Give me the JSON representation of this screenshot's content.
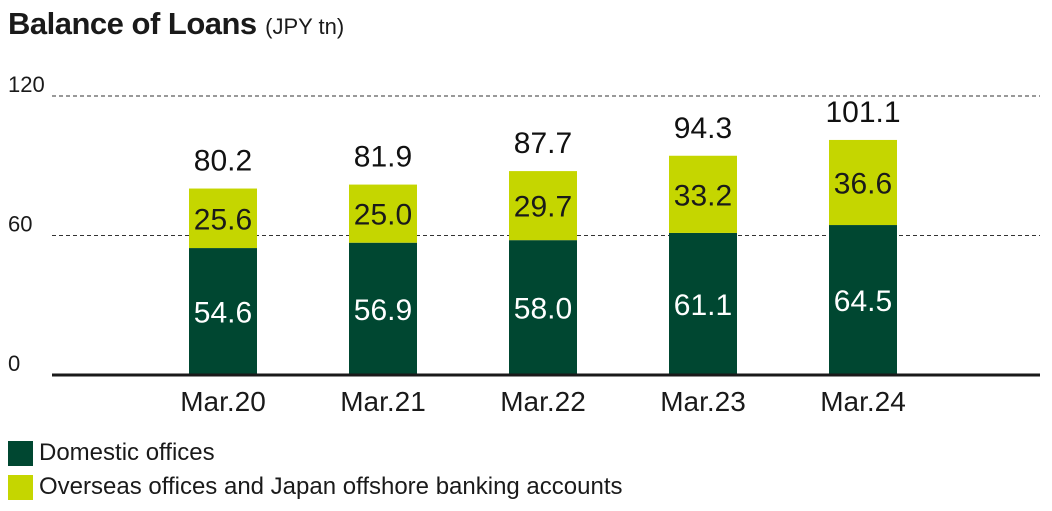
{
  "header": {
    "title": "Balance of Loans",
    "unit": "(JPY tn)"
  },
  "colors": {
    "domestic": "#004731",
    "overseas": "#c5d600",
    "axis": "#1a1a1a"
  },
  "chart_data": {
    "type": "bar",
    "stacked": true,
    "title": "Balance of Loans",
    "unit": "(JPY tn)",
    "categories": [
      "Mar.20",
      "Mar.21",
      "Mar.22",
      "Mar.23",
      "Mar.24"
    ],
    "series": [
      {
        "name": "Domestic offices",
        "values": [
          54.6,
          56.9,
          58.0,
          61.1,
          64.5
        ],
        "labels": [
          "54.6",
          "56.9",
          "58.0",
          "61.1",
          "64.5"
        ]
      },
      {
        "name": "Overseas offices and Japan offshore banking accounts",
        "values": [
          25.6,
          25.0,
          29.7,
          33.2,
          36.6
        ],
        "labels": [
          "25.6",
          "25.0",
          "29.7",
          "33.2",
          "36.6"
        ]
      }
    ],
    "totals": [
      80.2,
      81.9,
      87.7,
      94.3,
      101.1
    ],
    "total_labels": [
      "80.2",
      "81.9",
      "87.7",
      "94.3",
      "101.1"
    ],
    "ylim": [
      0,
      120
    ],
    "yticks": [
      "0",
      "60",
      "120"
    ],
    "ytick_values": [
      0,
      60,
      120
    ],
    "grid": "dashed at 60 and 120",
    "legend_position": "bottom-left"
  },
  "legend": [
    {
      "label": "Domestic offices"
    },
    {
      "label": "Overseas offices and Japan offshore banking accounts"
    }
  ]
}
